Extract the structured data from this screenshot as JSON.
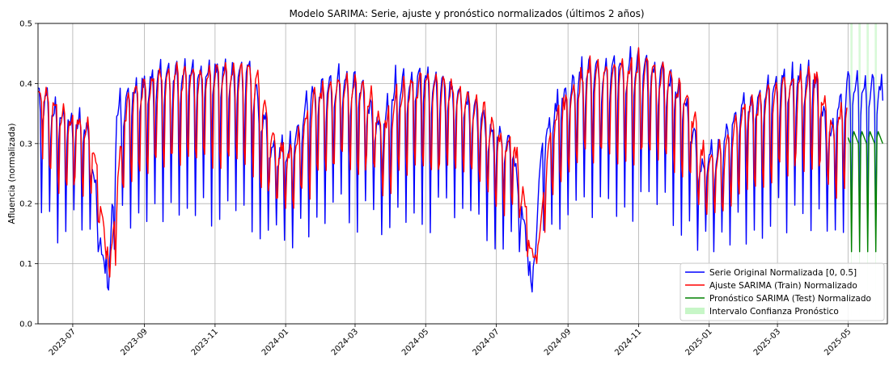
{
  "chart_data": {
    "type": "line",
    "title": "Modelo SARIMA: Serie, ajuste y pronóstico normalizados (últimos 2 años)",
    "xlabel": "",
    "ylabel": "Afluencia (normalizada)",
    "x_range": [
      "2023-06-01",
      "2025-06-04"
    ],
    "ylim": [
      0,
      0.5
    ],
    "y_ticks": [
      "0.0",
      "0.1",
      "0.2",
      "0.3",
      "0.4",
      "0.5"
    ],
    "x_ticks": [
      "2023-07",
      "2023-09",
      "2023-11",
      "2024-01",
      "2024-03",
      "2024-05",
      "2024-07",
      "2024-09",
      "2024-11",
      "2025-01",
      "2025-03",
      "2025-05"
    ],
    "x_tick_dates": [
      "2023-07-01",
      "2023-09-01",
      "2023-11-01",
      "2024-01-01",
      "2024-03-01",
      "2024-05-01",
      "2024-07-01",
      "2024-09-01",
      "2024-11-01",
      "2025-01-01",
      "2025-03-01",
      "2025-05-01"
    ],
    "grid": true,
    "legend_position": "lower-right",
    "train_end": "2025-04-30",
    "test_start": "2025-05-01",
    "test_end": "2025-05-31",
    "series": [
      {
        "name": "Serie Original Normalizada [0, 0.5]",
        "color": "#0000ff",
        "kind": "line",
        "weekly_profile": [
          0.84,
          0.92,
          0.95,
          0.97,
          1.0,
          0.88,
          0.38
        ],
        "weekly_envelope": [
          {
            "date": "2023-06-01",
            "value": 0.4
          },
          {
            "date": "2023-06-15",
            "value": 0.37
          },
          {
            "date": "2023-07-01",
            "value": 0.355
          },
          {
            "date": "2023-07-15",
            "value": 0.34
          },
          {
            "date": "2023-07-25",
            "value": 0.15
          },
          {
            "date": "2023-08-01",
            "value": 0.06
          },
          {
            "date": "2023-08-08",
            "value": 0.37
          },
          {
            "date": "2023-08-15",
            "value": 0.39
          },
          {
            "date": "2023-09-01",
            "value": 0.42
          },
          {
            "date": "2023-10-01",
            "value": 0.44
          },
          {
            "date": "2023-11-01",
            "value": 0.44
          },
          {
            "date": "2023-12-01",
            "value": 0.44
          },
          {
            "date": "2023-12-20",
            "value": 0.3
          },
          {
            "date": "2024-01-08",
            "value": 0.31
          },
          {
            "date": "2024-01-20",
            "value": 0.4
          },
          {
            "date": "2024-02-15",
            "value": 0.42
          },
          {
            "date": "2024-03-01",
            "value": 0.42
          },
          {
            "date": "2024-03-25",
            "value": 0.34
          },
          {
            "date": "2024-04-05",
            "value": 0.42
          },
          {
            "date": "2024-05-01",
            "value": 0.43
          },
          {
            "date": "2024-06-01",
            "value": 0.4
          },
          {
            "date": "2024-06-25",
            "value": 0.34
          },
          {
            "date": "2024-07-15",
            "value": 0.31
          },
          {
            "date": "2024-08-01",
            "value": 0.07
          },
          {
            "date": "2024-08-10",
            "value": 0.33
          },
          {
            "date": "2024-08-25",
            "value": 0.39
          },
          {
            "date": "2024-09-15",
            "value": 0.44
          },
          {
            "date": "2024-10-15",
            "value": 0.45
          },
          {
            "date": "2024-11-15",
            "value": 0.44
          },
          {
            "date": "2024-12-10",
            "value": 0.4
          },
          {
            "date": "2024-12-25",
            "value": 0.27
          },
          {
            "date": "2025-01-10",
            "value": 0.31
          },
          {
            "date": "2025-02-01",
            "value": 0.38
          },
          {
            "date": "2025-03-01",
            "value": 0.42
          },
          {
            "date": "2025-04-01",
            "value": 0.43
          },
          {
            "date": "2025-04-15",
            "value": 0.34
          },
          {
            "date": "2025-05-01",
            "value": 0.42
          },
          {
            "date": "2025-05-31",
            "value": 0.41
          }
        ]
      },
      {
        "name": "Ajuste SARIMA (Train) Normalizado",
        "color": "#ff0000",
        "kind": "line",
        "range": [
          "2023-06-01",
          "2025-04-30"
        ],
        "note_shape": "lagged fit of the original weekly pattern"
      },
      {
        "name": "Pronóstico SARIMA (Test) Normalizado",
        "color": "#008000",
        "kind": "line",
        "range": [
          "2025-05-01",
          "2025-05-31"
        ],
        "weekly_values": [
          0.31,
          0.32,
          0.315,
          0.31,
          0.305,
          0.3,
          0.12
        ]
      },
      {
        "name": "Intervalo Confianza Pronóstico",
        "color": "#90ee90",
        "kind": "band",
        "range": [
          "2025-05-01",
          "2025-05-31"
        ],
        "upper": 0.5,
        "lower_weekday": 0.5,
        "lower_sunday": 0.0
      }
    ]
  }
}
